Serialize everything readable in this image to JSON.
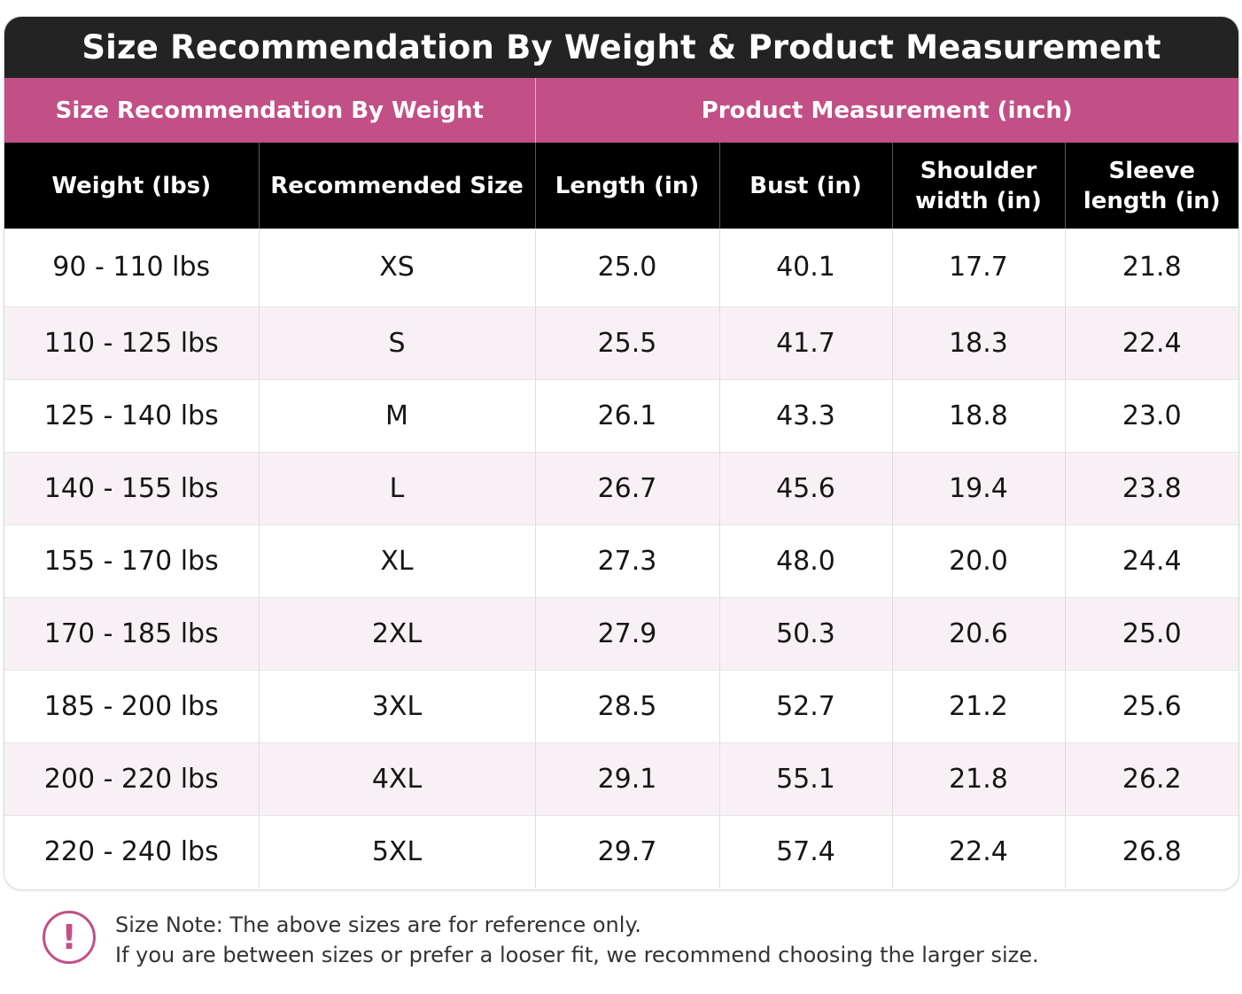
{
  "title": "Size Recommendation By Weight & Product Measurement",
  "groups": {
    "weight": "Size Recommendation By Weight",
    "measurement": "Product Measurement (inch)"
  },
  "columns": [
    "Weight (lbs)",
    "Recommended Size",
    "Length (in)",
    "Bust (in)",
    "Shoulder\nwidth (in)",
    "Sleeve\nlength (in)"
  ],
  "rows": [
    [
      "90 - 110 lbs",
      "XS",
      "25.0",
      "40.1",
      "17.7",
      "21.8"
    ],
    [
      "110 - 125 lbs",
      "S",
      "25.5",
      "41.7",
      "18.3",
      "22.4"
    ],
    [
      "125 - 140 lbs",
      "M",
      "26.1",
      "43.3",
      "18.8",
      "23.0"
    ],
    [
      "140 - 155 lbs",
      "L",
      "26.7",
      "45.6",
      "19.4",
      "23.8"
    ],
    [
      "155 - 170 lbs",
      "XL",
      "27.3",
      "48.0",
      "20.0",
      "24.4"
    ],
    [
      "170 - 185 lbs",
      "2XL",
      "27.9",
      "50.3",
      "20.6",
      "25.0"
    ],
    [
      "185 - 200 lbs",
      "3XL",
      "28.5",
      "52.7",
      "21.2",
      "25.6"
    ],
    [
      "200 - 220 lbs",
      "4XL",
      "29.1",
      "55.1",
      "21.8",
      "26.2"
    ],
    [
      "220 - 240 lbs",
      "5XL",
      "29.7",
      "57.4",
      "22.4",
      "26.8"
    ]
  ],
  "note": {
    "icon": "exclamation-circle-icon",
    "symbol": "!",
    "line1": "Size Note: The above sizes are for reference only.",
    "line2": "If you are between sizes or prefer a looser fit, we recommend choosing the larger size."
  },
  "colors": {
    "title_bar": "#232323",
    "group_header": "#c24f86",
    "column_header": "#000000",
    "alt_row": "#f7f1f5",
    "accent": "#c24f86"
  }
}
